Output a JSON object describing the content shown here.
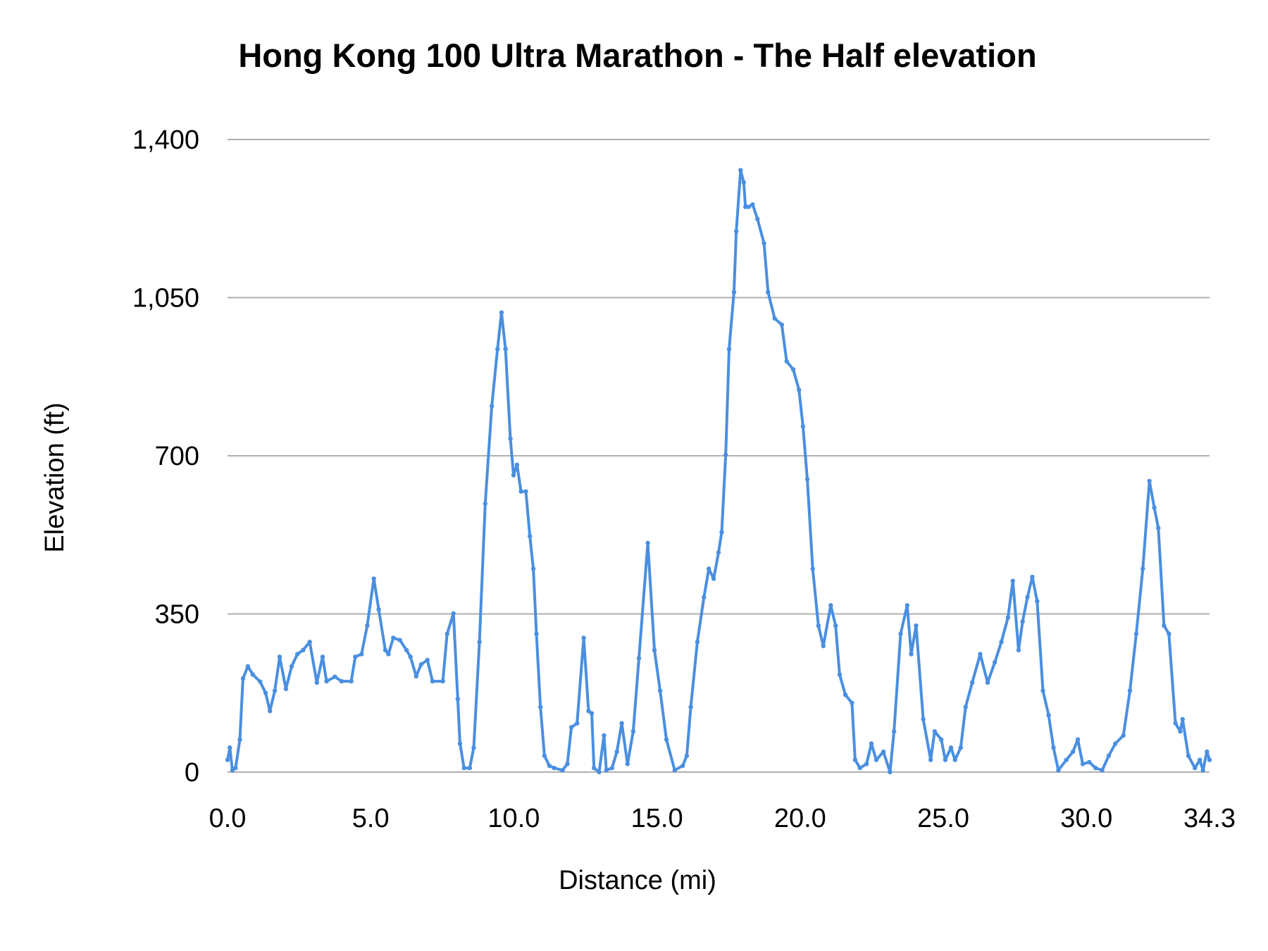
{
  "chart_data": {
    "type": "line",
    "title": "Hong Kong 100 Ultra Marathon - The Half elevation",
    "xlabel": "Distance (mi)",
    "ylabel": "Elevation (ft)",
    "xlim": [
      0.0,
      34.3
    ],
    "ylim": [
      0,
      1400
    ],
    "x_ticks": [
      "0.0",
      "5.0",
      "10.0",
      "15.0",
      "20.0",
      "25.0",
      "30.0",
      "34.3"
    ],
    "x_tick_values": [
      0,
      5,
      10,
      15,
      20,
      25,
      30,
      34.3
    ],
    "y_ticks": [
      "0",
      "350",
      "700",
      "1,050",
      "1,400"
    ],
    "y_tick_values": [
      0,
      350,
      700,
      1050,
      1400
    ],
    "grid": "horizontal",
    "legend": "none",
    "color": "#4a8fe0",
    "series": [
      {
        "x": [
          0.0,
          0.08,
          0.17,
          0.28,
          0.43,
          0.54,
          0.71,
          0.88,
          1.14,
          1.33,
          1.48,
          1.65,
          1.82,
          2.04,
          2.24,
          2.44,
          2.64,
          2.87,
          3.12,
          3.32,
          3.46,
          3.75,
          3.98,
          4.32,
          4.46,
          4.68,
          4.88,
          5.11,
          5.28,
          5.51,
          5.62,
          5.79,
          6.02,
          6.25,
          6.39,
          6.59,
          6.76,
          6.98,
          7.16,
          7.52,
          7.67,
          7.89,
          8.04,
          8.12,
          8.26,
          8.46,
          8.6,
          8.8,
          9.0,
          9.23,
          9.43,
          9.57,
          9.71,
          9.88,
          9.99,
          10.11,
          10.25,
          10.42,
          10.56,
          10.68,
          10.79,
          10.93,
          11.07,
          11.24,
          11.41,
          11.7,
          11.87,
          12.01,
          12.21,
          12.44,
          12.61,
          12.72,
          12.8,
          12.98,
          13.15,
          13.23,
          13.43,
          13.6,
          13.77,
          13.97,
          14.17,
          14.37,
          14.68,
          14.91,
          15.11,
          15.33,
          15.62,
          15.9,
          16.04,
          16.18,
          16.41,
          16.64,
          16.81,
          16.98,
          17.15,
          17.26,
          17.4,
          17.52,
          17.69,
          17.77,
          17.92,
          18.03,
          18.09,
          18.2,
          18.34,
          18.51,
          18.74,
          18.88,
          19.11,
          19.36,
          19.53,
          19.76,
          19.96,
          20.1,
          20.25,
          20.44,
          20.64,
          20.81,
          21.07,
          21.24,
          21.38,
          21.58,
          21.81,
          21.92,
          22.09,
          22.32,
          22.49,
          22.66,
          22.91,
          23.14,
          23.28,
          23.51,
          23.74,
          23.88,
          24.05,
          24.3,
          24.56,
          24.7,
          24.93,
          25.07,
          25.27,
          25.41,
          25.61,
          25.78,
          26.01,
          26.29,
          26.55,
          26.8,
          27.03,
          27.26,
          27.43,
          27.63,
          27.77,
          27.94,
          28.11,
          28.28,
          28.48,
          28.68,
          28.85,
          29.02,
          29.3,
          29.53,
          29.7,
          29.87,
          30.1,
          30.32,
          30.55,
          30.78,
          31.01,
          31.29,
          31.52,
          31.74,
          31.97,
          32.2,
          32.37,
          32.51,
          32.71,
          32.88,
          33.11,
          33.28,
          33.36,
          33.56,
          33.79,
          33.96,
          34.07,
          34.21,
          34.3
        ],
        "y": [
          27,
          54,
          4,
          9,
          72,
          207,
          234,
          216,
          200,
          175,
          135,
          180,
          255,
          184,
          234,
          261,
          270,
          288,
          198,
          255,
          201,
          211,
          201,
          201,
          255,
          261,
          324,
          428,
          360,
          270,
          261,
          297,
          292,
          270,
          255,
          212,
          238,
          248,
          201,
          201,
          306,
          351,
          162,
          63,
          9,
          9,
          54,
          288,
          594,
          810,
          936,
          1017,
          936,
          738,
          657,
          680,
          621,
          621,
          522,
          450,
          306,
          144,
          36,
          14,
          9,
          4,
          18,
          99,
          108,
          297,
          135,
          130,
          9,
          0,
          81,
          4,
          9,
          45,
          108,
          18,
          90,
          252,
          507,
          270,
          180,
          72,
          4,
          14,
          36,
          144,
          288,
          387,
          450,
          428,
          486,
          531,
          702,
          936,
          1062,
          1197,
          1332,
          1305,
          1251,
          1251,
          1256,
          1224,
          1170,
          1062,
          1004,
          990,
          909,
          891,
          846,
          765,
          648,
          450,
          324,
          279,
          369,
          324,
          216,
          171,
          153,
          27,
          9,
          18,
          63,
          27,
          45,
          0,
          90,
          306,
          369,
          261,
          324,
          117,
          27,
          90,
          72,
          27,
          54,
          27,
          54,
          144,
          198,
          261,
          198,
          243,
          288,
          342,
          423,
          270,
          333,
          387,
          432,
          378,
          180,
          126,
          54,
          4,
          27,
          45,
          72,
          18,
          22,
          9,
          4,
          36,
          63,
          81,
          180,
          306,
          450,
          644,
          585,
          540,
          324,
          306,
          108,
          90,
          117,
          36,
          9,
          27,
          4,
          45,
          27
        ]
      }
    ]
  }
}
